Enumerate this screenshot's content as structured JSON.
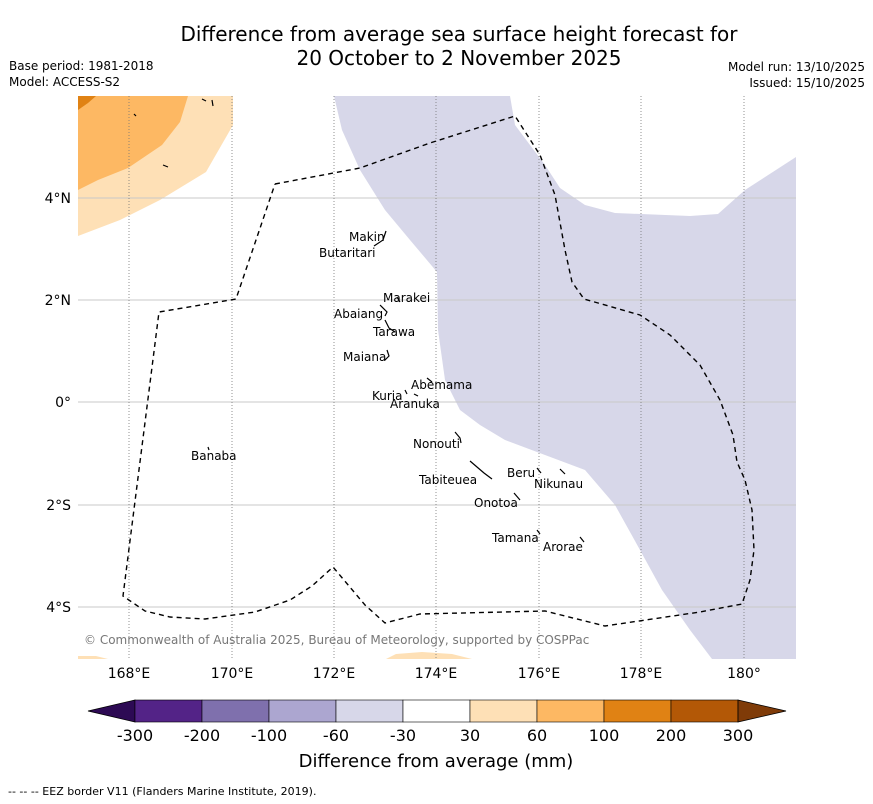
{
  "title": {
    "line1": "Difference from average sea surface height forecast for",
    "line2": "20 October to 2 November 2025"
  },
  "meta_left": {
    "base_period": "Base period: 1981-2018",
    "model": "Model: ACCESS-S2"
  },
  "meta_right": {
    "model_run": "Model run: 13/10/2025",
    "issued": "Issued: 15/10/2025"
  },
  "map": {
    "longitude_labels": [
      "168°E",
      "170°E",
      "172°E",
      "174°E",
      "176°E",
      "178°E",
      "180°"
    ],
    "latitude_labels": [
      "4°N",
      "2°N",
      "0°",
      "2°S",
      "4°S"
    ],
    "copyright": "© Commonwealth of Australia 2025, Bureau of Meteorology, supported by COSPPac",
    "islands": [
      "Makin",
      "Butaritari",
      "Marakei",
      "Abaiang",
      "Tarawa",
      "Maiana",
      "Abemama",
      "Kuria",
      "Aranuka",
      "Nonouti",
      "Tabiteuea",
      "Beru",
      "Nikunau",
      "Onotoa",
      "Tamana",
      "Arorae",
      "Banaba"
    ]
  },
  "colorbar": {
    "ticks": [
      "-300",
      "-200",
      "-100",
      "-60",
      "-30",
      "30",
      "60",
      "100",
      "200",
      "300"
    ],
    "colors": [
      "#2d0a54",
      "#532387",
      "#7f70ad",
      "#aca6d0",
      "#d7d7e9",
      "#ffffff",
      "#fee0b6",
      "#fdb863",
      "#e08214",
      "#b35806",
      "#7f3b08"
    ],
    "label": "Difference from average (mm)"
  },
  "footer": "--  --  -- EEZ border V11 (Flanders Marine Institute, 2019)."
}
